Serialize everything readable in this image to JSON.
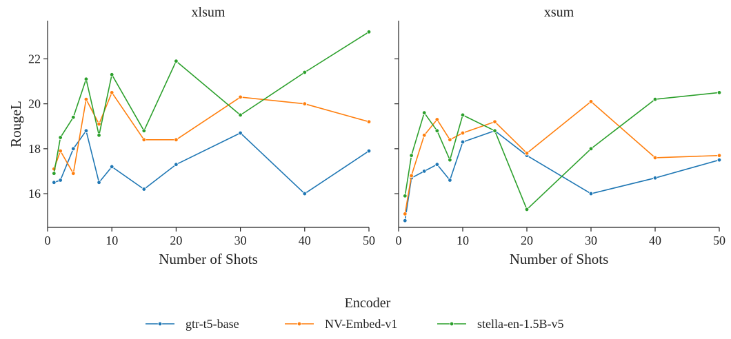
{
  "chart_data": {
    "type": "line",
    "shared_ylabel": "RougeL",
    "legend": {
      "title": "Encoder",
      "placement": "bottom-center",
      "entries": [
        "gtr-t5-base",
        "NV-Embed-v1",
        "stella-en-1.5B-v5"
      ]
    },
    "colors": {
      "gtr-t5-base": "#1f77b4",
      "NV-Embed-v1": "#ff7f0e",
      "stella-en-1.5B-v5": "#2ca02c"
    },
    "xlim": [
      0,
      50
    ],
    "ylim": [
      14.5,
      23.7
    ],
    "yticks": [
      "16",
      "18",
      "20",
      "22"
    ],
    "xticks": [
      "0",
      "10",
      "20",
      "30",
      "40",
      "50"
    ],
    "grid": false,
    "panels": [
      {
        "title": "xlsum",
        "xlabel": "Number of Shots",
        "x": [
          1,
          2,
          4,
          6,
          8,
          10,
          15,
          20,
          30,
          40,
          50
        ],
        "series": [
          {
            "name": "gtr-t5-base",
            "values": [
              16.5,
              16.6,
              18.0,
              18.8,
              16.5,
              17.2,
              16.2,
              17.3,
              18.7,
              16.0,
              17.9
            ]
          },
          {
            "name": "NV-Embed-v1",
            "values": [
              17.1,
              17.9,
              16.9,
              20.2,
              19.1,
              20.5,
              18.4,
              18.4,
              20.3,
              20.0,
              19.2
            ]
          },
          {
            "name": "stella-en-1.5B-v5",
            "values": [
              16.9,
              18.5,
              19.4,
              21.1,
              18.6,
              21.3,
              18.8,
              21.9,
              19.5,
              21.4,
              23.2
            ]
          }
        ]
      },
      {
        "title": "xsum",
        "xlabel": "Number of Shots",
        "x": [
          1,
          2,
          4,
          6,
          8,
          10,
          15,
          20,
          30,
          40,
          50
        ],
        "series": [
          {
            "name": "gtr-t5-base",
            "values": [
              14.8,
              16.7,
              17.0,
              17.3,
              16.6,
              18.3,
              18.8,
              17.7,
              16.0,
              16.7,
              17.5
            ]
          },
          {
            "name": "NV-Embed-v1",
            "values": [
              15.1,
              16.8,
              18.6,
              19.3,
              18.4,
              18.7,
              19.2,
              17.8,
              20.1,
              17.6,
              17.7
            ]
          },
          {
            "name": "stella-en-1.5B-v5",
            "values": [
              15.9,
              17.7,
              19.6,
              18.8,
              17.5,
              19.5,
              18.8,
              15.3,
              18.0,
              20.2,
              20.5
            ]
          }
        ]
      }
    ]
  }
}
